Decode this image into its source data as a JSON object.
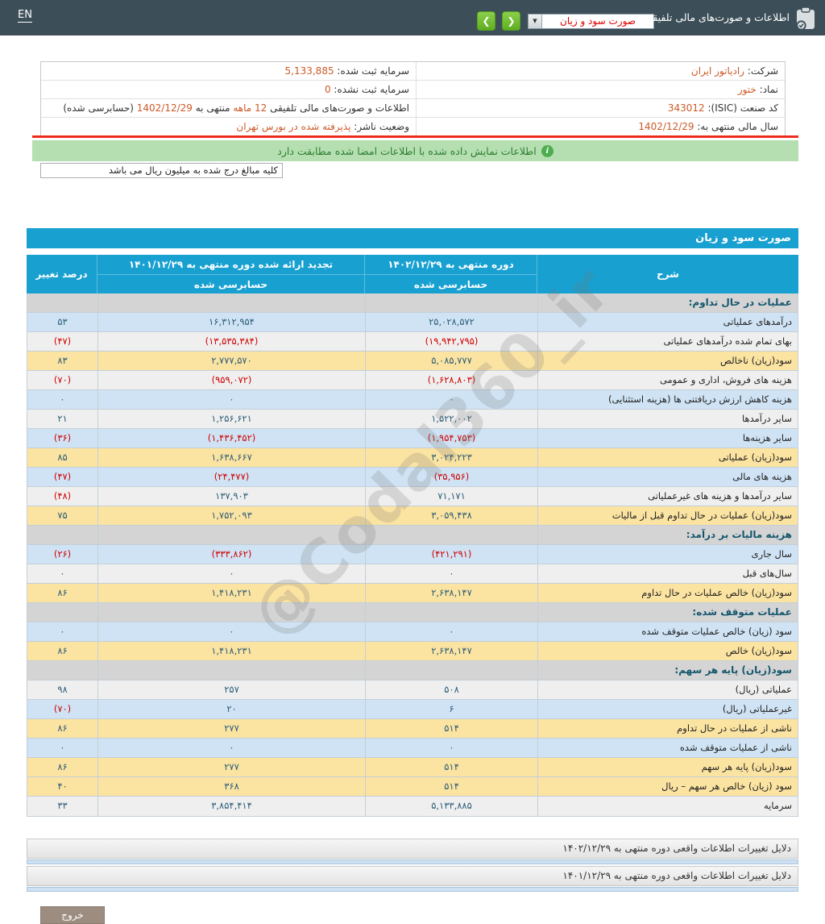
{
  "topbar": {
    "en": "EN",
    "section_title": "اطلاعات و صورت‌های مالی تلفیقی",
    "selected_statement": "صورت سود و زیان"
  },
  "banner": {
    "text": "اطلاعات نمایش داده شده با اطلاعات امضا شده مطابقت دارد"
  },
  "unit_note": "کلیه مبالغ درج شده به میلیون ریال می باشد",
  "company_info": {
    "rows": [
      {
        "right": [
          {
            "text": "شرکت: ",
            "highlight": false
          },
          {
            "text": "رادیاتور ایران",
            "highlight": true
          }
        ],
        "left": [
          {
            "text": "سرمایه ثبت شده: ",
            "highlight": false
          },
          {
            "text": "5,133,885",
            "highlight": true
          }
        ]
      },
      {
        "right": [
          {
            "text": "نماد: ",
            "highlight": false
          },
          {
            "text": "ختور",
            "highlight": true
          }
        ],
        "left": [
          {
            "text": "سرمایه ثبت نشده: ",
            "highlight": false
          },
          {
            "text": "0",
            "highlight": true
          }
        ]
      },
      {
        "right": [
          {
            "text": "کد صنعت (ISIC): ",
            "highlight": false
          },
          {
            "text": "343012",
            "highlight": true
          }
        ],
        "left": [
          {
            "text": "اطلاعات و صورت‌های مالی تلفیقی ",
            "highlight": false
          },
          {
            "text": "12 ماهه",
            "highlight": true
          },
          {
            "text": " منتهی به ",
            "highlight": false
          },
          {
            "text": "1402/12/29",
            "highlight": true
          },
          {
            "text": " (حسابرسی شده)",
            "highlight": false
          }
        ]
      },
      {
        "right": [
          {
            "text": "سال مالی منتهی به: ",
            "highlight": false
          },
          {
            "text": "1402/12/29",
            "highlight": true
          }
        ],
        "left": [
          {
            "text": "وضعیت ناشر: ",
            "highlight": false
          },
          {
            "text": "پذیرفته شده در بورس تهران",
            "highlight": true
          }
        ]
      }
    ]
  },
  "statement_table": {
    "title": "صورت سود و زیان",
    "columns": {
      "desc": "شرح",
      "period_current": "دوره منتهی به ۱۴۰۲/۱۲/۲۹",
      "period_restated": "تجدید ارائه شده دوره منتهی به ۱۴۰۱/۱۲/۲۹",
      "audited": "حسابرسی شده",
      "change": "درصد تغییر"
    },
    "rows": [
      {
        "type": "section",
        "label": "عملیات در حال تداوم:"
      },
      {
        "type": "data",
        "bg": "blue",
        "label": "درآمدهای عملیاتی",
        "current": "۲۵,۰۲۸,۵۷۲",
        "prior": "۱۶,۳۱۲,۹۵۴",
        "change": "۵۳"
      },
      {
        "type": "data",
        "bg": "gray",
        "label": "بهای تمام شده درآمدهای عملیاتی",
        "current": "(۱۹,۹۴۲,۷۹۵)",
        "prior": "(۱۳,۵۳۵,۳۸۴)",
        "change": "(۴۷)"
      },
      {
        "type": "data",
        "bg": "yellow",
        "label": "سود(زیان) ناخالص",
        "current": "۵,۰۸۵,۷۷۷",
        "prior": "۲,۷۷۷,۵۷۰",
        "change": "۸۳"
      },
      {
        "type": "data",
        "bg": "gray",
        "label": "هزینه های فروش، اداری و عمومی",
        "current": "(۱,۶۲۸,۸۰۳)",
        "prior": "(۹۵۹,۰۷۲)",
        "change": "(۷۰)"
      },
      {
        "type": "data",
        "bg": "blue",
        "label": "هزینه کاهش ارزش دریافتنی ها (هزینه استثنایی)",
        "current": "۰",
        "prior": "۰",
        "change": "۰"
      },
      {
        "type": "data",
        "bg": "gray",
        "label": "سایر درآمدها",
        "current": "۱,۵۲۲,۰۰۲",
        "prior": "۱,۲۵۶,۶۲۱",
        "change": "۲۱"
      },
      {
        "type": "data",
        "bg": "blue",
        "label": "سایر هزینه‌ها",
        "current": "(۱,۹۵۴,۷۵۳)",
        "prior": "(۱,۴۳۶,۴۵۲)",
        "change": "(۳۶)"
      },
      {
        "type": "data",
        "bg": "yellow",
        "label": "سود(زیان) عملیاتی",
        "current": "۳,۰۲۴,۲۲۳",
        "prior": "۱,۶۳۸,۶۶۷",
        "change": "۸۵"
      },
      {
        "type": "data",
        "bg": "blue",
        "label": "هزینه های مالی",
        "current": "(۳۵,۹۵۶)",
        "prior": "(۲۴,۴۷۷)",
        "change": "(۴۷)"
      },
      {
        "type": "data",
        "bg": "gray",
        "label": "سایر درآمدها و هزینه های غیرعملیاتی",
        "current": "۷۱,۱۷۱",
        "prior": "۱۳۷,۹۰۳",
        "change": "(۴۸)"
      },
      {
        "type": "data",
        "bg": "yellow",
        "label": "سود(زیان) عملیات در حال تداوم قبل از مالیات",
        "current": "۳,۰۵۹,۴۳۸",
        "prior": "۱,۷۵۲,۰۹۳",
        "change": "۷۵"
      },
      {
        "type": "section",
        "label": "هزینه مالیات بر درآمد:"
      },
      {
        "type": "data",
        "bg": "blue",
        "label": "سال جاری",
        "current": "(۴۲۱,۲۹۱)",
        "prior": "(۳۳۳,۸۶۲)",
        "change": "(۲۶)"
      },
      {
        "type": "data",
        "bg": "gray",
        "label": "سال‌های قبل",
        "current": "۰",
        "prior": "۰",
        "change": "۰"
      },
      {
        "type": "data",
        "bg": "yellow",
        "label": "سود(زیان) خالص عملیات در حال تداوم",
        "current": "۲,۶۳۸,۱۴۷",
        "prior": "۱,۴۱۸,۲۳۱",
        "change": "۸۶"
      },
      {
        "type": "section",
        "label": "عملیات متوقف شده:"
      },
      {
        "type": "data",
        "bg": "blue",
        "label": "سود (زیان) خالص عملیات متوقف شده",
        "current": "۰",
        "prior": "۰",
        "change": "۰"
      },
      {
        "type": "data",
        "bg": "yellow",
        "label": "سود(زیان) خالص",
        "current": "۲,۶۳۸,۱۴۷",
        "prior": "۱,۴۱۸,۲۳۱",
        "change": "۸۶"
      },
      {
        "type": "section",
        "label": "سود(زیان) پایه هر سهم:"
      },
      {
        "type": "data",
        "bg": "gray",
        "label": "عملیاتی (ریال)",
        "current": "۵۰۸",
        "prior": "۲۵۷",
        "change": "۹۸"
      },
      {
        "type": "data",
        "bg": "blue",
        "label": "غیرعملیاتی (ریال)",
        "current": "۶",
        "prior": "۲۰",
        "change": "(۷۰)"
      },
      {
        "type": "data",
        "bg": "yellow",
        "label": "ناشی از عملیات در حال تداوم",
        "current": "۵۱۴",
        "prior": "۲۷۷",
        "change": "۸۶"
      },
      {
        "type": "data",
        "bg": "blue",
        "label": "ناشی از عملیات متوقف شده",
        "current": "۰",
        "prior": "۰",
        "change": "۰"
      },
      {
        "type": "data",
        "bg": "yellow",
        "label": "سود(زیان) پایه هر سهم",
        "current": "۵۱۴",
        "prior": "۲۷۷",
        "change": "۸۶"
      },
      {
        "type": "data",
        "bg": "yellow",
        "label": "سود (زیان) خالص هر سهم – ریال",
        "current": "۵۱۴",
        "prior": "۳۶۸",
        "change": "۴۰"
      },
      {
        "type": "data",
        "bg": "gray",
        "label": "سرمایه",
        "current": "۵,۱۳۳,۸۸۵",
        "prior": "۳,۸۵۴,۴۱۴",
        "change": "۳۳"
      }
    ]
  },
  "accordions": [
    {
      "label": "دلایل تغییرات اطلاعات واقعی دوره منتهی به ۱۴۰۲/۱۲/۲۹"
    },
    {
      "label": "دلایل تغییرات اطلاعات واقعی دوره منتهی به ۱۴۰۱/۱۲/۲۹"
    }
  ],
  "exit_label": "خروج",
  "watermark": "@Codal360_ir",
  "colors": {
    "topbar_teal": "#3c4f59",
    "table_header_blue": "#18a0d1",
    "row_yellow": "#fbe3a1",
    "row_blue": "#cfe3f4",
    "section_gray": "#d4d4d4",
    "banner_green": "#b5dfb0",
    "value_orange": "#cc5a28",
    "negative_red": "#d10000",
    "nav_button_green": "#5fae22",
    "red_separator": "#ee2c1c"
  }
}
